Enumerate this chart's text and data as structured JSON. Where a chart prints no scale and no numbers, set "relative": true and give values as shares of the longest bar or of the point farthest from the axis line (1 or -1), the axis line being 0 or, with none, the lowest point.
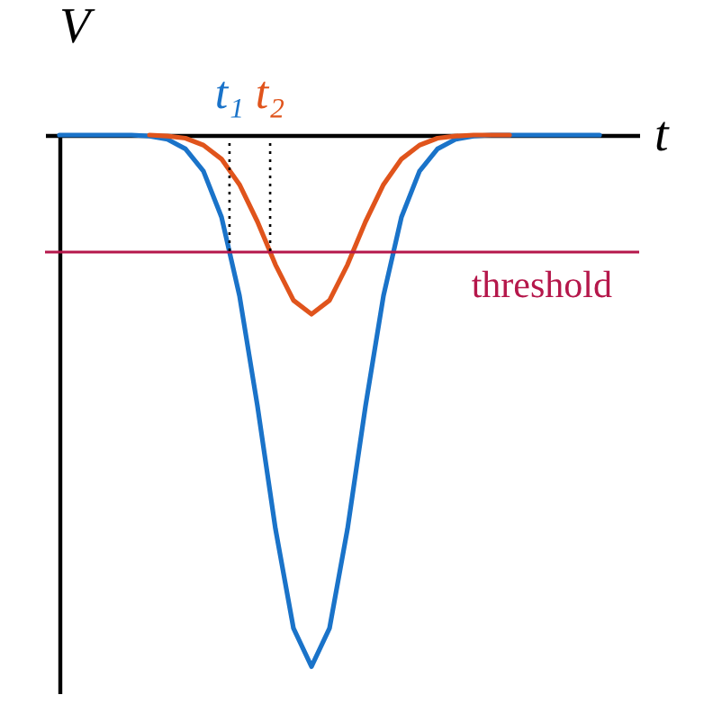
{
  "chart_data": {
    "type": "line",
    "relative": true,
    "xlabel": "t",
    "ylabel": "V",
    "tick_labels": false,
    "marker": "none",
    "line_style": "solid",
    "categories": [
      null,
      null,
      null,
      null,
      null,
      null,
      null,
      null,
      null,
      null,
      null,
      null,
      null,
      null,
      null,
      null,
      null,
      null,
      null,
      null,
      null,
      null,
      null,
      null,
      null,
      null,
      null,
      null,
      null,
      null,
      null
    ],
    "series": [
      {
        "color": "#1a73c9",
        "values": [
          0,
          0,
          0,
          0,
          0,
          -0.002,
          -0.008,
          -0.026,
          -0.068,
          -0.154,
          -0.302,
          -0.51,
          -0.741,
          -0.928,
          -1,
          -0.928,
          -0.741,
          -0.51,
          -0.302,
          -0.154,
          -0.068,
          -0.026,
          -0.008,
          -0.002,
          0,
          0,
          0,
          0,
          0,
          0,
          0
        ]
      },
      {
        "color": "#e0541c",
        "values": [
          null,
          null,
          null,
          null,
          null,
          0,
          -0.002,
          -0.006,
          -0.019,
          -0.045,
          -0.093,
          -0.163,
          -0.244,
          -0.311,
          -0.337,
          -0.311,
          -0.244,
          -0.163,
          -0.093,
          -0.045,
          -0.019,
          -0.006,
          -0.002,
          0,
          0,
          0,
          null,
          null,
          null,
          null,
          null
        ]
      }
    ],
    "ref_lines": [
      {
        "axis": "y",
        "value": -0.22,
        "label": "threshold",
        "color": "#b5174b"
      }
    ],
    "annotations": [
      "t₁",
      "t₂"
    ]
  }
}
